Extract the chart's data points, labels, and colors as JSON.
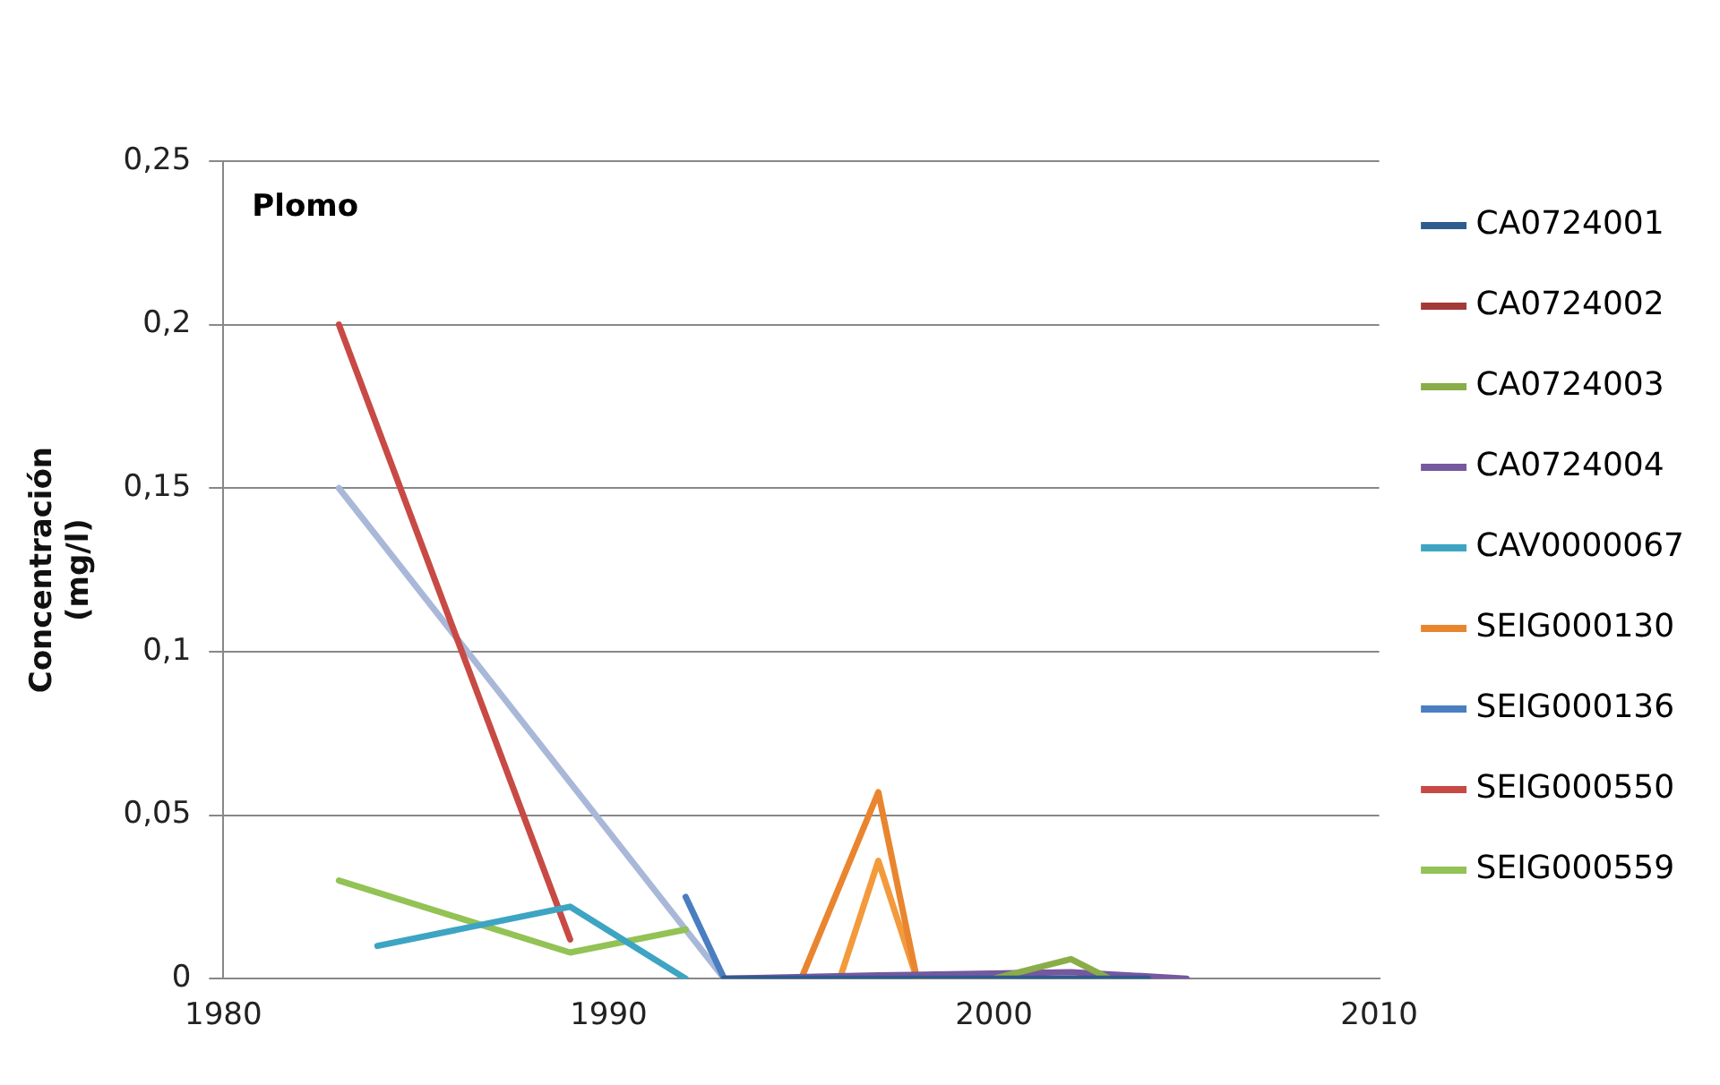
{
  "chart_data": {
    "type": "line",
    "title": "Plomo",
    "ylabel": "Concentración (mg/l)",
    "xlim": [
      1980,
      2010
    ],
    "xticks": [
      1980,
      1990,
      2000,
      2010
    ],
    "ylim": [
      0,
      0.25
    ],
    "yticks": [
      {
        "value": 0,
        "label": "0"
      },
      {
        "value": 0.05,
        "label": "0,05"
      },
      {
        "value": 0.1,
        "label": "0,1"
      },
      {
        "value": 0.15,
        "label": "0,15"
      },
      {
        "value": 0.2,
        "label": "0,2"
      },
      {
        "value": 0.25,
        "label": "0,25"
      }
    ],
    "grid": "y",
    "legend": "right",
    "marker": "none",
    "line_style": "solid",
    "series": [
      {
        "name": "CA0724001",
        "color": "#2f5c8f",
        "x": [
          1993,
          2004
        ],
        "values": [
          0,
          0
        ]
      },
      {
        "name": "CA0724002",
        "color": "#a33a37"
      },
      {
        "name": "CA0724003",
        "color": "#8aad48",
        "x": [
          2000,
          2002,
          2003
        ],
        "values": [
          0,
          0.006,
          0
        ]
      },
      {
        "name": "CA0724004",
        "color": "#7558a0",
        "x": [
          1993,
          1997,
          2002,
          2005
        ],
        "values": [
          0,
          0.001,
          0.002,
          0
        ]
      },
      {
        "name": "CAV0000067",
        "color": "#3ea4c4",
        "x": [
          1984,
          1989,
          1992
        ],
        "values": [
          0.01,
          0.022,
          0
        ]
      },
      {
        "name": "SEIG000130",
        "color": "#e9852f",
        "x": [
          1995,
          1997,
          1998,
          2000
        ],
        "values": [
          0,
          0.057,
          0,
          0
        ]
      },
      {
        "name": "SEIG000136",
        "color": "#4a7ec0",
        "x": [
          1992,
          1993
        ],
        "values": [
          0.025,
          0
        ]
      },
      {
        "name": "SEIG000550",
        "color": "#c84a45",
        "x": [
          1983,
          1989
        ],
        "values": [
          0.2,
          0.012
        ]
      },
      {
        "name": "SEIG000559",
        "color": "#93c255",
        "x": [
          1983,
          1989,
          1992
        ],
        "values": [
          0.03,
          0.008,
          0.015
        ]
      },
      {
        "color": "#a9b8d8",
        "x": [
          1983,
          1993
        ],
        "values": [
          0.15,
          0
        ]
      },
      {
        "color": "#f39a3c",
        "x": [
          1996,
          1997,
          1998
        ],
        "values": [
          0,
          0.036,
          0
        ]
      }
    ]
  }
}
